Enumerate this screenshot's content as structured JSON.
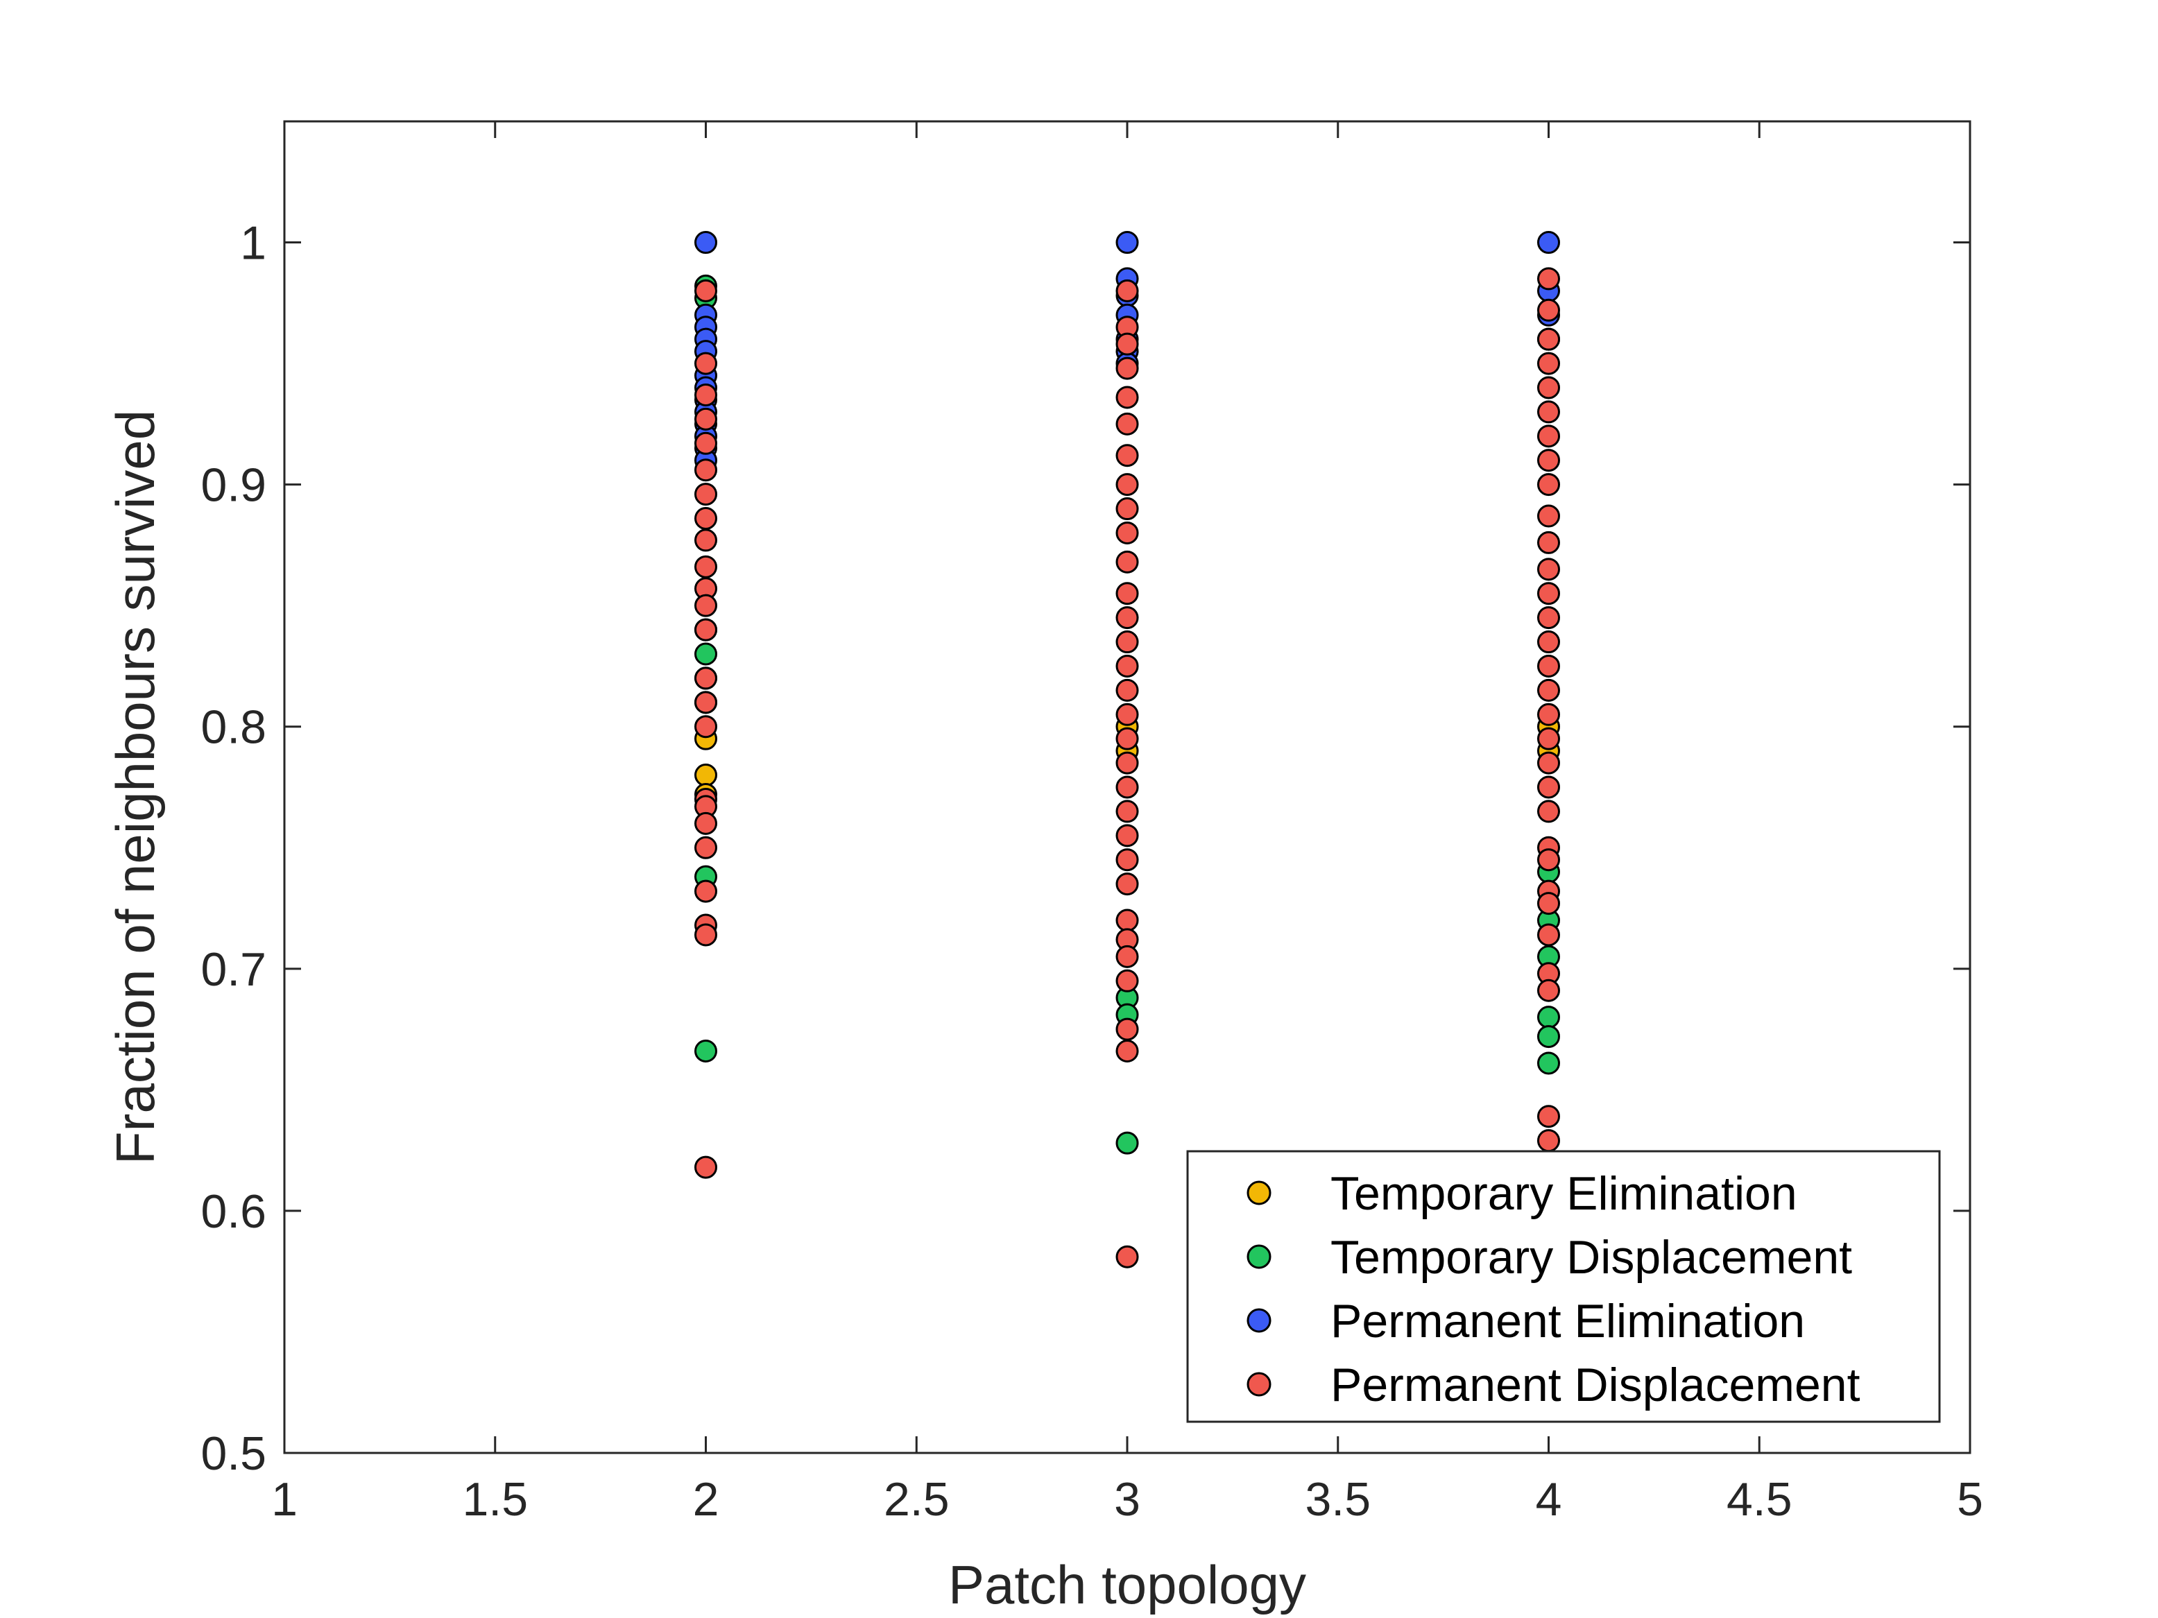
{
  "chart_data": {
    "type": "scatter",
    "xlabel": "Patch topology",
    "ylabel": "Fraction of neighbours survived",
    "xlim": [
      1,
      5
    ],
    "ylim": [
      0.5,
      1.05
    ],
    "xticks": [
      "1",
      "1.5",
      "2",
      "2.5",
      "3",
      "3.5",
      "4",
      "4.5",
      "5"
    ],
    "yticks": [
      "0.5",
      "0.6",
      "0.7",
      "0.8",
      "0.9",
      "1"
    ],
    "grid": false,
    "legend_position": "bottom-right",
    "series": [
      {
        "name": "Temporary Elimination",
        "color": "#f2b705",
        "points": [
          [
            2,
            0.795
          ],
          [
            2,
            0.78
          ],
          [
            2,
            0.772
          ],
          [
            3,
            0.8
          ],
          [
            3,
            0.79
          ],
          [
            4,
            0.8
          ],
          [
            4,
            0.79
          ]
        ]
      },
      {
        "name": "Temporary Displacement",
        "color": "#22c55e",
        "points": [
          [
            2,
            0.982
          ],
          [
            2,
            0.977
          ],
          [
            2,
            0.84
          ],
          [
            2,
            0.83
          ],
          [
            2,
            0.82
          ],
          [
            2,
            0.81
          ],
          [
            2,
            0.738
          ],
          [
            2,
            0.666
          ],
          [
            3,
            0.688
          ],
          [
            3,
            0.681
          ],
          [
            3,
            0.628
          ],
          [
            4,
            0.74
          ],
          [
            4,
            0.72
          ],
          [
            4,
            0.705
          ],
          [
            4,
            0.68
          ],
          [
            4,
            0.672
          ],
          [
            4,
            0.661
          ]
        ]
      },
      {
        "name": "Permanent Elimination",
        "color": "#3b5bf5",
        "points": [
          [
            2,
            1.0
          ],
          [
            2,
            0.97
          ],
          [
            2,
            0.965
          ],
          [
            2,
            0.96
          ],
          [
            2,
            0.955
          ],
          [
            2,
            0.945
          ],
          [
            2,
            0.94
          ],
          [
            2,
            0.935
          ],
          [
            2,
            0.93
          ],
          [
            2,
            0.925
          ],
          [
            2,
            0.92
          ],
          [
            2,
            0.915
          ],
          [
            2,
            0.91
          ],
          [
            3,
            1.0
          ],
          [
            3,
            0.985
          ],
          [
            3,
            0.978
          ],
          [
            3,
            0.97
          ],
          [
            3,
            0.96
          ],
          [
            3,
            0.955
          ],
          [
            3,
            0.95
          ],
          [
            4,
            1.0
          ],
          [
            4,
            0.98
          ],
          [
            4,
            0.97
          ],
          [
            4,
            0.96
          ]
        ]
      },
      {
        "name": "Permanent Displacement",
        "color": "#f0584e",
        "points": [
          [
            2,
            0.98
          ],
          [
            2,
            0.95
          ],
          [
            2,
            0.937
          ],
          [
            2,
            0.927
          ],
          [
            2,
            0.917
          ],
          [
            2,
            0.906
          ],
          [
            2,
            0.896
          ],
          [
            2,
            0.886
          ],
          [
            2,
            0.877
          ],
          [
            2,
            0.866
          ],
          [
            2,
            0.857
          ],
          [
            2,
            0.85
          ],
          [
            2,
            0.84
          ],
          [
            2,
            0.82
          ],
          [
            2,
            0.81
          ],
          [
            2,
            0.8
          ],
          [
            2,
            0.77
          ],
          [
            2,
            0.767
          ],
          [
            2,
            0.76
          ],
          [
            2,
            0.75
          ],
          [
            2,
            0.732
          ],
          [
            2,
            0.718
          ],
          [
            2,
            0.714
          ],
          [
            2,
            0.618
          ],
          [
            3,
            0.98
          ],
          [
            3,
            0.965
          ],
          [
            3,
            0.958
          ],
          [
            3,
            0.948
          ],
          [
            3,
            0.936
          ],
          [
            3,
            0.925
          ],
          [
            3,
            0.912
          ],
          [
            3,
            0.9
          ],
          [
            3,
            0.89
          ],
          [
            3,
            0.88
          ],
          [
            3,
            0.868
          ],
          [
            3,
            0.855
          ],
          [
            3,
            0.845
          ],
          [
            3,
            0.835
          ],
          [
            3,
            0.825
          ],
          [
            3,
            0.815
          ],
          [
            3,
            0.805
          ],
          [
            3,
            0.795
          ],
          [
            3,
            0.785
          ],
          [
            3,
            0.775
          ],
          [
            3,
            0.765
          ],
          [
            3,
            0.755
          ],
          [
            3,
            0.745
          ],
          [
            3,
            0.735
          ],
          [
            3,
            0.72
          ],
          [
            3,
            0.712
          ],
          [
            3,
            0.705
          ],
          [
            3,
            0.695
          ],
          [
            3,
            0.675
          ],
          [
            3,
            0.666
          ],
          [
            3,
            0.581
          ],
          [
            4,
            0.985
          ],
          [
            4,
            0.972
          ],
          [
            4,
            0.96
          ],
          [
            4,
            0.95
          ],
          [
            4,
            0.94
          ],
          [
            4,
            0.93
          ],
          [
            4,
            0.92
          ],
          [
            4,
            0.91
          ],
          [
            4,
            0.9
          ],
          [
            4,
            0.887
          ],
          [
            4,
            0.876
          ],
          [
            4,
            0.865
          ],
          [
            4,
            0.855
          ],
          [
            4,
            0.845
          ],
          [
            4,
            0.835
          ],
          [
            4,
            0.825
          ],
          [
            4,
            0.815
          ],
          [
            4,
            0.805
          ],
          [
            4,
            0.795
          ],
          [
            4,
            0.785
          ],
          [
            4,
            0.775
          ],
          [
            4,
            0.765
          ],
          [
            4,
            0.75
          ],
          [
            4,
            0.745
          ],
          [
            4,
            0.732
          ],
          [
            4,
            0.727
          ],
          [
            4,
            0.714
          ],
          [
            4,
            0.698
          ],
          [
            4,
            0.691
          ],
          [
            4,
            0.639
          ],
          [
            4,
            0.629
          ]
        ]
      }
    ]
  }
}
